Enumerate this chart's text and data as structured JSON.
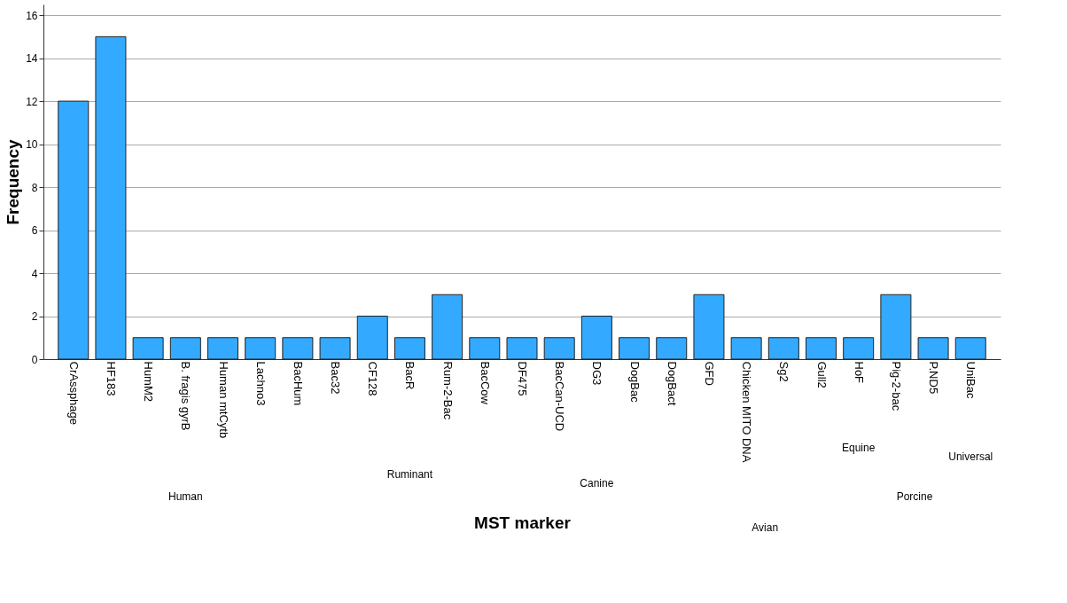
{
  "chart_data": {
    "type": "bar",
    "xlabel": "MST marker",
    "ylabel": "Frequency",
    "categories": [
      "CrAssphage",
      "HF183",
      "HumM2",
      "B. fragis gyrB",
      "Human mtCytb",
      "Lachno3",
      "BacHum",
      "Bac32",
      "CF128",
      "BacR",
      "Rum-2-Bac",
      "BacCow",
      "DF475",
      "BacCan-UCD",
      "DG3",
      "DogBac",
      "DogBact",
      "GFD",
      "Chicken MITO DNA",
      "Sg2",
      "Gull2",
      "HoF",
      "Pig-2-bac",
      "P.ND5",
      "UniBac"
    ],
    "values": [
      12,
      15,
      1,
      1,
      1,
      1,
      1,
      1,
      2,
      1,
      3,
      1,
      1,
      1,
      2,
      1,
      1,
      3,
      1,
      1,
      1,
      1,
      3,
      1,
      1
    ],
    "color": "#33aaff",
    "ylim": [
      0,
      16.5
    ],
    "yticks": [
      0,
      2,
      4,
      6,
      8,
      10,
      12,
      14,
      16
    ],
    "grid": "y",
    "annotations": [
      "Human",
      "Ruminant",
      "Canine",
      "Avian",
      "Equine",
      "Porcine",
      "Universal"
    ]
  }
}
